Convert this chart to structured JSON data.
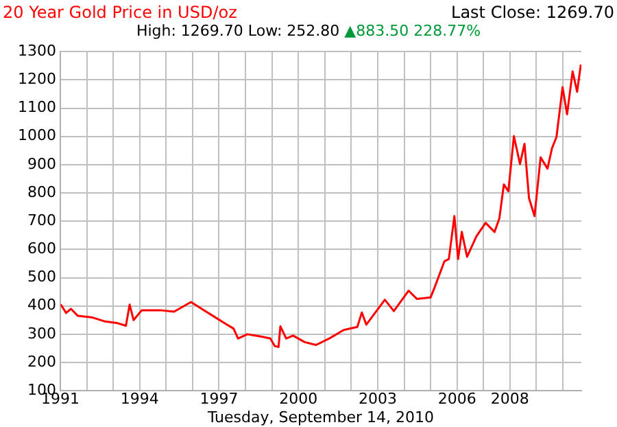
{
  "chart_data": {
    "type": "line",
    "title": "20 Year Gold Price in USD/oz",
    "xlabel": "Tuesday, September 14, 2010",
    "annotations": [
      "Last Close: 1269.70",
      "High: 1269.70 Low: 252.80",
      "▲883.50 228.77%"
    ],
    "x": [
      1991.02,
      1991.22,
      1991.4,
      1991.66,
      1992.18,
      1992.7,
      1993.13,
      1993.48,
      1993.62,
      1993.77,
      1994.08,
      1994.78,
      1995.3,
      1995.94,
      1996.34,
      1996.77,
      1997.2,
      1997.55,
      1997.72,
      1998.07,
      1998.59,
      1998.94,
      1999.11,
      1999.25,
      1999.32,
      1999.54,
      1999.8,
      2000.24,
      2000.67,
      2001.19,
      2001.71,
      2002.23,
      2002.4,
      2002.57,
      2003.27,
      2003.61,
      2004.17,
      2004.48,
      2005.0,
      2005.17,
      2005.52,
      2005.69,
      2005.9,
      2006.04,
      2006.18,
      2006.38,
      2006.73,
      2007.08,
      2007.42,
      2007.6,
      2007.77,
      2007.94,
      2008.15,
      2008.38,
      2008.55,
      2008.72,
      2008.93,
      2009.16,
      2009.42,
      2009.59,
      2009.76,
      2009.99,
      2010.16,
      2010.37,
      2010.54,
      2010.68
    ],
    "series": [
      {
        "color": "#ff0000",
        "values": [
          405,
          375,
          390,
          365,
          360,
          345,
          340,
          330,
          405,
          350,
          385,
          385,
          380,
          414,
          390,
          365,
          340,
          320,
          285,
          300,
          292,
          285,
          258,
          255,
          328,
          285,
          295,
          272,
          262,
          286,
          315,
          326,
          377,
          334,
          422,
          382,
          454,
          425,
          430,
          470,
          558,
          566,
          718,
          566,
          662,
          574,
          646,
          694,
          662,
          710,
          830,
          806,
          1001,
          902,
          974,
          782,
          718,
          926,
          886,
          958,
          998,
          1174,
          1078,
          1230,
          1158,
          1254
        ]
      }
    ],
    "xlim": [
      1991,
      2010.7
    ],
    "xticks": [
      1991,
      {
        "value": 1992,
        "label": null
      },
      {
        "value": 1993,
        "label": null
      },
      1994,
      {
        "value": 1995,
        "label": null
      },
      {
        "value": 1996,
        "label": null
      },
      1997,
      {
        "value": 1998,
        "label": null
      },
      {
        "value": 1999,
        "label": null
      },
      2000,
      {
        "value": 2001,
        "label": null
      },
      {
        "value": 2002,
        "label": null
      },
      2003,
      {
        "value": 2004,
        "label": null
      },
      {
        "value": 2005,
        "label": null
      },
      2006,
      {
        "value": 2007,
        "label": null
      },
      2008,
      {
        "value": 2009,
        "label": null
      },
      {
        "value": 2010,
        "label": null
      }
    ],
    "ylim": [
      100,
      1300
    ],
    "yticks": [
      100,
      200,
      300,
      400,
      500,
      600,
      700,
      800,
      900,
      1000,
      1100,
      1200,
      1300
    ],
    "grid": true,
    "marker": "none",
    "line_style": "solid"
  }
}
